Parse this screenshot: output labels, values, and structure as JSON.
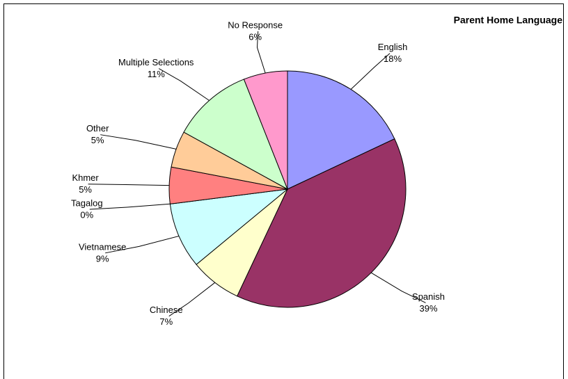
{
  "chart_data": {
    "type": "pie",
    "title": "Parent Home Language",
    "categories": [
      "English",
      "Spanish",
      "Chinese",
      "Vietnamese",
      "Tagalog",
      "Khmer",
      "Other",
      "Multiple Selections",
      "No Response"
    ],
    "values": [
      18,
      39,
      7,
      9,
      0,
      5,
      5,
      11,
      6
    ],
    "value_labels": [
      "18%",
      "39%",
      "7%",
      "9%",
      "0%",
      "5%",
      "5%",
      "11%",
      "6%"
    ],
    "colors": [
      "#9999ff",
      "#993366",
      "#ffffcc",
      "#ccffff",
      "#660066",
      "#ff8080",
      "#ffcc99",
      "#ccffcc",
      "#ff99cc"
    ]
  }
}
